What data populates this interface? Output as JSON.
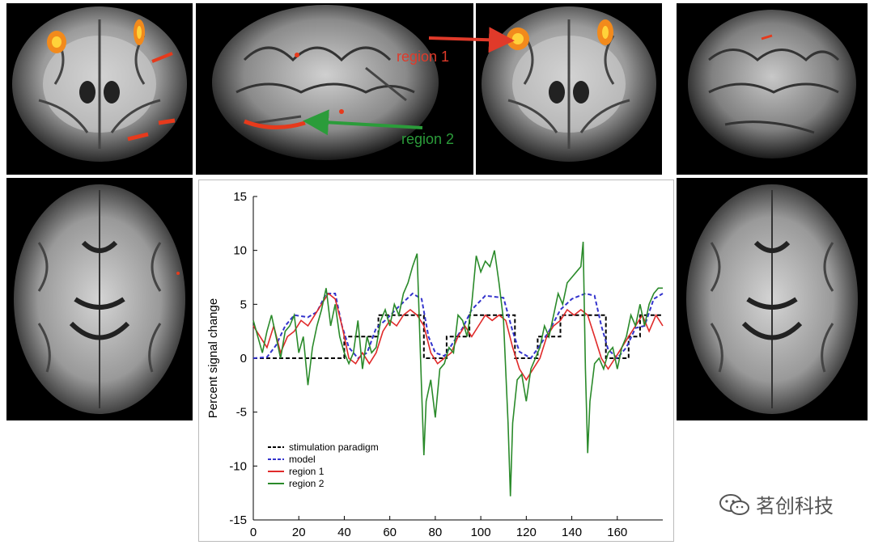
{
  "callouts": {
    "region1": {
      "label": "region 1",
      "color": "#e03a2a"
    },
    "region2": {
      "label": "region 2",
      "color": "#2b9c3a"
    }
  },
  "watermark": {
    "text": "茗创科技",
    "icon": "wechat-icon"
  },
  "scans": [
    {
      "view": "coronal",
      "activation": true
    },
    {
      "view": "sagittal",
      "activation": true
    },
    {
      "view": "coronal",
      "activation": true
    },
    {
      "view": "sagittal",
      "activation": false
    },
    {
      "view": "axial",
      "activation": false
    },
    {
      "view": "axial",
      "activation": false
    }
  ],
  "chart_data": {
    "type": "line",
    "title": "",
    "xlabel": "",
    "ylabel": "Percent signal change",
    "xlim": [
      0,
      180
    ],
    "ylim": [
      -15,
      15
    ],
    "xticks": [
      0,
      20,
      40,
      60,
      80,
      100,
      120,
      140,
      160
    ],
    "yticks": [
      15,
      10,
      5,
      0,
      -5,
      -10,
      -15
    ],
    "legend_position": "bottom-left",
    "series": [
      {
        "name": "stimulation paradigm",
        "color": "#000000",
        "dash": "dashed",
        "points": [
          [
            0,
            0
          ],
          [
            40,
            0
          ],
          [
            40,
            2
          ],
          [
            55,
            2
          ],
          [
            55,
            4
          ],
          [
            75,
            4
          ],
          [
            75,
            0
          ],
          [
            85,
            0
          ],
          [
            85,
            2
          ],
          [
            95,
            2
          ],
          [
            95,
            4
          ],
          [
            115,
            4
          ],
          [
            115,
            0
          ],
          [
            125,
            0
          ],
          [
            125,
            2
          ],
          [
            135,
            2
          ],
          [
            135,
            4
          ],
          [
            155,
            4
          ],
          [
            155,
            0
          ],
          [
            165,
            0
          ],
          [
            165,
            2
          ],
          [
            170,
            2
          ],
          [
            170,
            4
          ],
          [
            180,
            4
          ]
        ]
      },
      {
        "name": "model",
        "color": "#3333cc",
        "dash": "dashed",
        "points": [
          [
            0,
            0
          ],
          [
            6,
            0.1
          ],
          [
            10,
            1.2
          ],
          [
            14,
            3
          ],
          [
            18,
            4
          ],
          [
            24,
            3.8
          ],
          [
            28,
            4.3
          ],
          [
            32,
            6
          ],
          [
            36,
            6
          ],
          [
            39,
            3
          ],
          [
            42,
            1
          ],
          [
            46,
            0
          ],
          [
            50,
            0.5
          ],
          [
            54,
            2.8
          ],
          [
            58,
            3.5
          ],
          [
            64,
            4.8
          ],
          [
            70,
            6
          ],
          [
            74,
            5.5
          ],
          [
            77,
            2
          ],
          [
            80,
            0.5
          ],
          [
            84,
            0.2
          ],
          [
            88,
            1.5
          ],
          [
            92,
            2.8
          ],
          [
            96,
            4.5
          ],
          [
            102,
            5.8
          ],
          [
            110,
            5.6
          ],
          [
            114,
            2.5
          ],
          [
            117,
            0.6
          ],
          [
            122,
            0
          ],
          [
            126,
            1.2
          ],
          [
            130,
            2.5
          ],
          [
            135,
            4.5
          ],
          [
            140,
            5.5
          ],
          [
            146,
            6
          ],
          [
            150,
            5.8
          ],
          [
            153,
            3
          ],
          [
            156,
            0.8
          ],
          [
            160,
            0
          ],
          [
            164,
            1
          ],
          [
            168,
            2.8
          ],
          [
            172,
            3
          ],
          [
            176,
            5.5
          ],
          [
            180,
            6
          ]
        ]
      },
      {
        "name": "region 1",
        "color": "#e02a2a",
        "dash": "solid",
        "points": [
          [
            0,
            3
          ],
          [
            3,
            2
          ],
          [
            6,
            1
          ],
          [
            9,
            3
          ],
          [
            12,
            0.5
          ],
          [
            15,
            2
          ],
          [
            18,
            2.5
          ],
          [
            21,
            3.5
          ],
          [
            24,
            3
          ],
          [
            27,
            4
          ],
          [
            30,
            5
          ],
          [
            33,
            6
          ],
          [
            36,
            5.5
          ],
          [
            39,
            3
          ],
          [
            42,
            0
          ],
          [
            45,
            -0.5
          ],
          [
            48,
            0.5
          ],
          [
            51,
            -0.5
          ],
          [
            54,
            0.5
          ],
          [
            57,
            2.5
          ],
          [
            60,
            3.5
          ],
          [
            63,
            3
          ],
          [
            66,
            4
          ],
          [
            69,
            4.5
          ],
          [
            72,
            4
          ],
          [
            75,
            3
          ],
          [
            78,
            0.5
          ],
          [
            81,
            -0.5
          ],
          [
            84,
            0
          ],
          [
            87,
            0.5
          ],
          [
            90,
            2
          ],
          [
            93,
            3
          ],
          [
            96,
            2
          ],
          [
            99,
            3
          ],
          [
            102,
            4
          ],
          [
            105,
            3.5
          ],
          [
            108,
            4
          ],
          [
            111,
            3.5
          ],
          [
            114,
            1
          ],
          [
            117,
            -1
          ],
          [
            120,
            -2
          ],
          [
            123,
            -1
          ],
          [
            126,
            0
          ],
          [
            129,
            2
          ],
          [
            132,
            3
          ],
          [
            135,
            3.5
          ],
          [
            138,
            4.5
          ],
          [
            141,
            4
          ],
          [
            144,
            4.5
          ],
          [
            147,
            4
          ],
          [
            150,
            2
          ],
          [
            153,
            0
          ],
          [
            156,
            -1
          ],
          [
            159,
            0
          ],
          [
            162,
            1
          ],
          [
            165,
            2
          ],
          [
            168,
            3
          ],
          [
            171,
            4
          ],
          [
            174,
            2.5
          ],
          [
            177,
            4
          ],
          [
            180,
            3
          ]
        ]
      },
      {
        "name": "region 2",
        "color": "#2a8a2a",
        "dash": "solid",
        "points": [
          [
            0,
            3.5
          ],
          [
            2,
            2
          ],
          [
            4,
            0.5
          ],
          [
            6,
            2.5
          ],
          [
            8,
            4
          ],
          [
            10,
            2
          ],
          [
            12,
            0
          ],
          [
            14,
            2.5
          ],
          [
            16,
            3
          ],
          [
            18,
            4
          ],
          [
            20,
            0.5
          ],
          [
            22,
            2
          ],
          [
            24,
            -2.5
          ],
          [
            26,
            1
          ],
          [
            28,
            3
          ],
          [
            30,
            4.5
          ],
          [
            32,
            6.5
          ],
          [
            34,
            3
          ],
          [
            36,
            5
          ],
          [
            38,
            2
          ],
          [
            40,
            0.5
          ],
          [
            42,
            -0.5
          ],
          [
            44,
            0.5
          ],
          [
            46,
            3.5
          ],
          [
            48,
            -1
          ],
          [
            50,
            2
          ],
          [
            52,
            0.5
          ],
          [
            54,
            1
          ],
          [
            56,
            3.5
          ],
          [
            58,
            4.5
          ],
          [
            60,
            3
          ],
          [
            62,
            5
          ],
          [
            64,
            4
          ],
          [
            66,
            6
          ],
          [
            68,
            7
          ],
          [
            70,
            8.5
          ],
          [
            72,
            9.7
          ],
          [
            74,
            -3
          ],
          [
            75,
            -9
          ],
          [
            76,
            -4
          ],
          [
            78,
            -2
          ],
          [
            80,
            -5.5
          ],
          [
            82,
            -1
          ],
          [
            84,
            -0.5
          ],
          [
            86,
            1
          ],
          [
            88,
            0.5
          ],
          [
            90,
            4
          ],
          [
            92,
            3.5
          ],
          [
            94,
            2
          ],
          [
            96,
            5
          ],
          [
            98,
            9.5
          ],
          [
            100,
            8
          ],
          [
            102,
            9
          ],
          [
            104,
            8.5
          ],
          [
            106,
            10
          ],
          [
            108,
            7
          ],
          [
            110,
            3.5
          ],
          [
            112,
            -6
          ],
          [
            113,
            -12.8
          ],
          [
            114,
            -6
          ],
          [
            116,
            -2
          ],
          [
            118,
            -1.5
          ],
          [
            120,
            -4
          ],
          [
            122,
            -1
          ],
          [
            124,
            0
          ],
          [
            126,
            1
          ],
          [
            128,
            3
          ],
          [
            130,
            2
          ],
          [
            132,
            4
          ],
          [
            134,
            6
          ],
          [
            136,
            5
          ],
          [
            138,
            7
          ],
          [
            140,
            7.5
          ],
          [
            142,
            8
          ],
          [
            144,
            8.5
          ],
          [
            145,
            10.8
          ],
          [
            146,
            -1
          ],
          [
            147,
            -8.8
          ],
          [
            148,
            -4
          ],
          [
            150,
            -0.5
          ],
          [
            152,
            0
          ],
          [
            154,
            -1
          ],
          [
            156,
            0.5
          ],
          [
            158,
            1
          ],
          [
            160,
            -1
          ],
          [
            162,
            1
          ],
          [
            164,
            2
          ],
          [
            166,
            4
          ],
          [
            168,
            3
          ],
          [
            170,
            5
          ],
          [
            172,
            3
          ],
          [
            174,
            5
          ],
          [
            176,
            6
          ],
          [
            178,
            6.5
          ],
          [
            180,
            6.5
          ]
        ]
      }
    ]
  }
}
